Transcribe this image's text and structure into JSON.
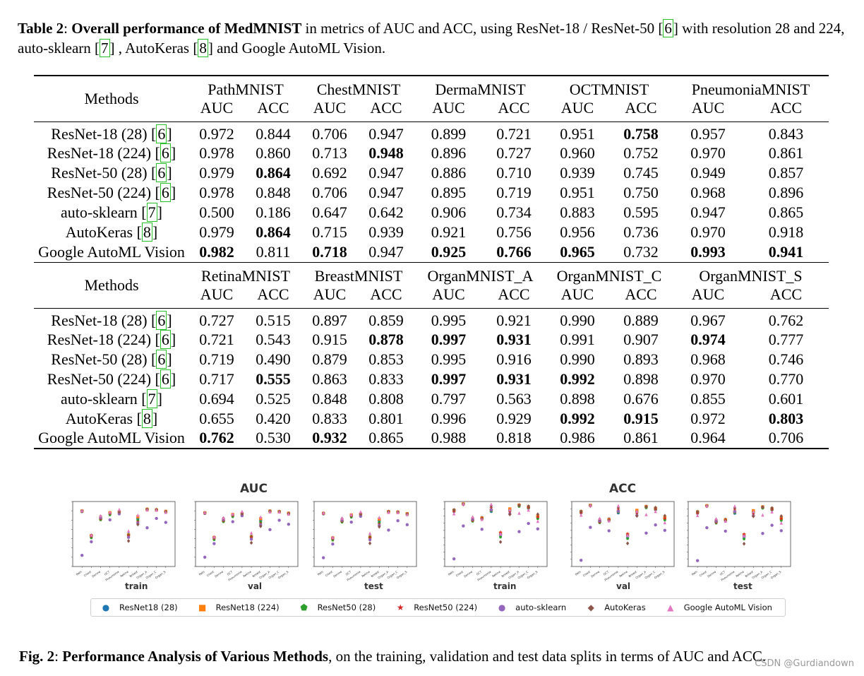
{
  "caption_top": {
    "label": "Table 2",
    "bold_title": "Overall performance of MedMNIST",
    "text_1": " in metrics of AUC and ACC, using ResNet-18 / ResNet-50 [",
    "cite_1": "6",
    "text_2": "] with resolution 28 and 224, auto-sklearn [",
    "cite_2": "7",
    "text_3": "] , AutoKeras [",
    "cite_3": "8",
    "text_4": "] and Google AutoML Vision."
  },
  "table": {
    "methods_header": "Methods",
    "metric_auc": "AUC",
    "metric_acc": "ACC",
    "blocks": [
      {
        "datasets": [
          "PathMNIST",
          "ChestMNIST",
          "DermaMNIST",
          "OCTMNIST",
          "PneumoniaMNIST"
        ],
        "rows": [
          {
            "method": "ResNet-18 (28) [",
            "cite": "6",
            "tail": "]",
            "values": [
              "0.972",
              "0.844",
              "0.706",
              "0.947",
              "0.899",
              "0.721",
              "0.951",
              "0.758",
              "0.957",
              "0.843"
            ],
            "bold": [
              false,
              false,
              false,
              false,
              false,
              false,
              false,
              true,
              false,
              false
            ]
          },
          {
            "method": "ResNet-18 (224) [",
            "cite": "6",
            "tail": "]",
            "values": [
              "0.978",
              "0.860",
              "0.713",
              "0.948",
              "0.896",
              "0.727",
              "0.960",
              "0.752",
              "0.970",
              "0.861"
            ],
            "bold": [
              false,
              false,
              false,
              true,
              false,
              false,
              false,
              false,
              false,
              false
            ]
          },
          {
            "method": "ResNet-50 (28) [",
            "cite": "6",
            "tail": "]",
            "values": [
              "0.979",
              "0.864",
              "0.692",
              "0.947",
              "0.886",
              "0.710",
              "0.939",
              "0.745",
              "0.949",
              "0.857"
            ],
            "bold": [
              false,
              true,
              false,
              false,
              false,
              false,
              false,
              false,
              false,
              false
            ]
          },
          {
            "method": "ResNet-50 (224) [",
            "cite": "6",
            "tail": "]",
            "values": [
              "0.978",
              "0.848",
              "0.706",
              "0.947",
              "0.895",
              "0.719",
              "0.951",
              "0.750",
              "0.968",
              "0.896"
            ],
            "bold": [
              false,
              false,
              false,
              false,
              false,
              false,
              false,
              false,
              false,
              false
            ]
          },
          {
            "method": "auto-sklearn [",
            "cite": "7",
            "tail": "]",
            "values": [
              "0.500",
              "0.186",
              "0.647",
              "0.642",
              "0.906",
              "0.734",
              "0.883",
              "0.595",
              "0.947",
              "0.865"
            ],
            "bold": [
              false,
              false,
              false,
              false,
              false,
              false,
              false,
              false,
              false,
              false
            ]
          },
          {
            "method": "AutoKeras [",
            "cite": "8",
            "tail": "]",
            "values": [
              "0.979",
              "0.864",
              "0.715",
              "0.939",
              "0.921",
              "0.756",
              "0.956",
              "0.736",
              "0.970",
              "0.918"
            ],
            "bold": [
              false,
              true,
              false,
              false,
              false,
              false,
              false,
              false,
              false,
              false
            ]
          },
          {
            "method": "Google AutoML Vision",
            "cite": "",
            "tail": "",
            "values": [
              "0.982",
              "0.811",
              "0.718",
              "0.947",
              "0.925",
              "0.766",
              "0.965",
              "0.732",
              "0.993",
              "0.941"
            ],
            "bold": [
              true,
              false,
              true,
              false,
              true,
              true,
              true,
              false,
              true,
              true
            ]
          }
        ]
      },
      {
        "datasets": [
          "RetinaMNIST",
          "BreastMNIST",
          "OrganMNIST_A",
          "OrganMNIST_C",
          "OrganMNIST_S"
        ],
        "rows": [
          {
            "method": "ResNet-18 (28) [",
            "cite": "6",
            "tail": "]",
            "values": [
              "0.727",
              "0.515",
              "0.897",
              "0.859",
              "0.995",
              "0.921",
              "0.990",
              "0.889",
              "0.967",
              "0.762"
            ],
            "bold": [
              false,
              false,
              false,
              false,
              false,
              false,
              false,
              false,
              false,
              false
            ]
          },
          {
            "method": "ResNet-18 (224) [",
            "cite": "6",
            "tail": "]",
            "values": [
              "0.721",
              "0.543",
              "0.915",
              "0.878",
              "0.997",
              "0.931",
              "0.991",
              "0.907",
              "0.974",
              "0.777"
            ],
            "bold": [
              false,
              false,
              false,
              true,
              true,
              true,
              false,
              false,
              true,
              false
            ]
          },
          {
            "method": "ResNet-50 (28) [",
            "cite": "6",
            "tail": "]",
            "values": [
              "0.719",
              "0.490",
              "0.879",
              "0.853",
              "0.995",
              "0.916",
              "0.990",
              "0.893",
              "0.968",
              "0.746"
            ],
            "bold": [
              false,
              false,
              false,
              false,
              false,
              false,
              false,
              false,
              false,
              false
            ]
          },
          {
            "method": "ResNet-50 (224) [",
            "cite": "6",
            "tail": "]",
            "values": [
              "0.717",
              "0.555",
              "0.863",
              "0.833",
              "0.997",
              "0.931",
              "0.992",
              "0.898",
              "0.970",
              "0.770"
            ],
            "bold": [
              false,
              true,
              false,
              false,
              true,
              true,
              true,
              false,
              false,
              false
            ]
          },
          {
            "method": "auto-sklearn [",
            "cite": "7",
            "tail": "]",
            "values": [
              "0.694",
              "0.525",
              "0.848",
              "0.808",
              "0.797",
              "0.563",
              "0.898",
              "0.676",
              "0.855",
              "0.601"
            ],
            "bold": [
              false,
              false,
              false,
              false,
              false,
              false,
              false,
              false,
              false,
              false
            ]
          },
          {
            "method": "AutoKeras [",
            "cite": "8",
            "tail": "]",
            "values": [
              "0.655",
              "0.420",
              "0.833",
              "0.801",
              "0.996",
              "0.929",
              "0.992",
              "0.915",
              "0.972",
              "0.803"
            ],
            "bold": [
              false,
              false,
              false,
              false,
              false,
              false,
              true,
              true,
              false,
              true
            ]
          },
          {
            "method": "Google AutoML Vision",
            "cite": "",
            "tail": "",
            "values": [
              "0.762",
              "0.530",
              "0.932",
              "0.865",
              "0.988",
              "0.818",
              "0.986",
              "0.861",
              "0.964",
              "0.706"
            ],
            "bold": [
              true,
              false,
              true,
              false,
              false,
              false,
              false,
              false,
              false,
              false
            ]
          }
        ]
      }
    ]
  },
  "figure": {
    "group_titles": [
      "AUC",
      "ACC"
    ],
    "split_labels": [
      "train",
      "val",
      "test",
      "train",
      "val",
      "test"
    ],
    "legend": [
      {
        "label": "ResNet18 (28)",
        "marker": "circle",
        "color": "#1f77b4"
      },
      {
        "label": "ResNet18 (224)",
        "marker": "square",
        "color": "#ff7f0e"
      },
      {
        "label": "ResNet50 (28)",
        "marker": "pentagon",
        "color": "#2ca02c"
      },
      {
        "label": "ResNet50 (224)",
        "marker": "star",
        "color": "#d62728"
      },
      {
        "label": "auto-sklearn",
        "marker": "circle",
        "color": "#9467bd"
      },
      {
        "label": "AutoKeras",
        "marker": "diamond",
        "color": "#8c564b"
      },
      {
        "label": "Google AutoML Vision",
        "marker": "triangle",
        "color": "#e377c2"
      }
    ]
  },
  "chart_data": [
    {
      "type": "scatter",
      "title": "AUC",
      "xlabel": "test",
      "categories": [
        "Path",
        "Chest",
        "Derma",
        "OCT",
        "Pneumonia",
        "Retina",
        "Breast",
        "Organ_A",
        "Organ_C",
        "Organ_S"
      ],
      "series": [
        {
          "name": "ResNet18 (28)",
          "values": [
            0.972,
            0.706,
            0.899,
            0.951,
            0.957,
            0.727,
            0.897,
            0.995,
            0.99,
            0.967
          ]
        },
        {
          "name": "ResNet18 (224)",
          "values": [
            0.978,
            0.713,
            0.896,
            0.96,
            0.97,
            0.721,
            0.915,
            0.997,
            0.991,
            0.974
          ]
        },
        {
          "name": "ResNet50 (28)",
          "values": [
            0.979,
            0.692,
            0.886,
            0.939,
            0.949,
            0.719,
            0.879,
            0.995,
            0.99,
            0.968
          ]
        },
        {
          "name": "ResNet50 (224)",
          "values": [
            0.978,
            0.706,
            0.895,
            0.951,
            0.968,
            0.717,
            0.863,
            0.997,
            0.992,
            0.97
          ]
        },
        {
          "name": "auto-sklearn",
          "values": [
            0.5,
            0.647,
            0.906,
            0.883,
            0.947,
            0.694,
            0.848,
            0.797,
            0.898,
            0.855
          ]
        },
        {
          "name": "AutoKeras",
          "values": [
            0.979,
            0.715,
            0.921,
            0.956,
            0.97,
            0.655,
            0.833,
            0.996,
            0.992,
            0.972
          ]
        },
        {
          "name": "Google AutoML Vision",
          "values": [
            0.982,
            0.718,
            0.925,
            0.965,
            0.993,
            0.762,
            0.932,
            0.988,
            0.986,
            0.964
          ]
        }
      ],
      "ylim": [
        0.4,
        1.1
      ]
    },
    {
      "type": "scatter",
      "title": "ACC",
      "xlabel": "test",
      "categories": [
        "Path",
        "Chest",
        "Derma",
        "OCT",
        "Pneumonia",
        "Retina",
        "Breast",
        "Organ_A",
        "Organ_C",
        "Organ_S"
      ],
      "series": [
        {
          "name": "ResNet18 (28)",
          "values": [
            0.844,
            0.947,
            0.721,
            0.758,
            0.843,
            0.515,
            0.859,
            0.921,
            0.889,
            0.762
          ]
        },
        {
          "name": "ResNet18 (224)",
          "values": [
            0.86,
            0.948,
            0.727,
            0.752,
            0.861,
            0.543,
            0.878,
            0.931,
            0.907,
            0.777
          ]
        },
        {
          "name": "ResNet50 (28)",
          "values": [
            0.864,
            0.947,
            0.71,
            0.745,
            0.857,
            0.49,
            0.853,
            0.916,
            0.893,
            0.746
          ]
        },
        {
          "name": "ResNet50 (224)",
          "values": [
            0.848,
            0.947,
            0.719,
            0.75,
            0.896,
            0.555,
            0.833,
            0.931,
            0.898,
            0.77
          ]
        },
        {
          "name": "auto-sklearn",
          "values": [
            0.186,
            0.642,
            0.734,
            0.595,
            0.865,
            0.525,
            0.808,
            0.563,
            0.676,
            0.601
          ]
        },
        {
          "name": "AutoKeras",
          "values": [
            0.864,
            0.939,
            0.756,
            0.736,
            0.918,
            0.42,
            0.801,
            0.929,
            0.915,
            0.803
          ]
        },
        {
          "name": "Google AutoML Vision",
          "values": [
            0.811,
            0.947,
            0.766,
            0.732,
            0.941,
            0.53,
            0.865,
            0.818,
            0.861,
            0.706
          ]
        }
      ],
      "ylim": [
        0.1,
        1.0
      ]
    }
  ],
  "caption_bottom": {
    "label": "Fig. 2",
    "bold_title": "Performance Analysis of Various Methods",
    "text": ", on the training, validation and test data splits in terms of AUC and ACC."
  },
  "watermark": "CSDN @Gurdiandown"
}
